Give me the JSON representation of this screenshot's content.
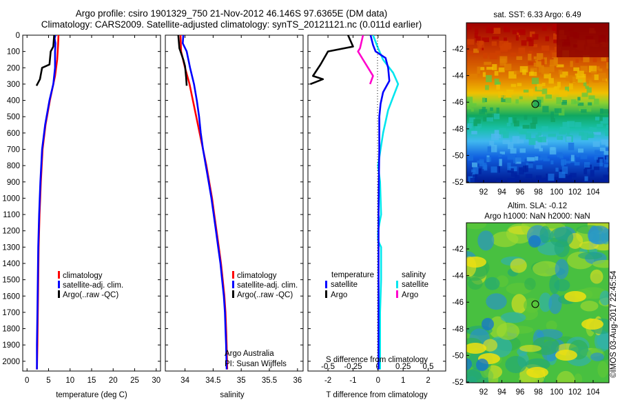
{
  "header": {
    "title_line1": "Argo profile: csiro 1901329_750 21-Nov-2012 46.146S 97.6365E (DM data)",
    "title_line2": "Climatology: CARS2009. Satellite-adjusted climatology: synTS_20121121.nc (0.011d earlier)"
  },
  "depth_ticks": [
    0,
    100,
    200,
    300,
    400,
    500,
    600,
    700,
    800,
    900,
    1000,
    1100,
    1200,
    1300,
    1400,
    1500,
    1600,
    1700,
    1800,
    1900,
    2000
  ],
  "temperature_panel": {
    "xlabel": "temperature (deg C)",
    "xlim": [
      -1,
      31
    ],
    "xticks": [
      0,
      5,
      10,
      15,
      20,
      25,
      30
    ],
    "legend": [
      "climatology",
      "satellite-adj. clim.",
      "Argo(..raw -QC)"
    ],
    "series": {
      "climatology": {
        "color": "#ff0000",
        "points": [
          [
            7.3,
            0
          ],
          [
            7.2,
            60
          ],
          [
            7.0,
            150
          ],
          [
            6.5,
            250
          ],
          [
            5.3,
            400
          ],
          [
            4.3,
            550
          ],
          [
            3.6,
            700
          ],
          [
            3.2,
            900
          ],
          [
            2.9,
            1100
          ],
          [
            2.7,
            1300
          ],
          [
            2.6,
            1500
          ],
          [
            2.5,
            1700
          ],
          [
            2.4,
            1900
          ],
          [
            2.3,
            2050
          ]
        ]
      },
      "satellite": {
        "color": "#0000ff",
        "points": [
          [
            6.6,
            0
          ],
          [
            6.4,
            20
          ],
          [
            6.6,
            50
          ],
          [
            6.5,
            100
          ],
          [
            6.5,
            200
          ],
          [
            6.1,
            300
          ],
          [
            5.2,
            400
          ],
          [
            4.2,
            550
          ],
          [
            3.5,
            700
          ],
          [
            3.1,
            900
          ],
          [
            2.8,
            1100
          ],
          [
            2.6,
            1300
          ],
          [
            2.5,
            1500
          ],
          [
            2.4,
            1700
          ],
          [
            2.3,
            1900
          ],
          [
            2.3,
            2050
          ]
        ]
      },
      "argo": {
        "color": "#000000",
        "points": [
          [
            6.3,
            0
          ],
          [
            6.1,
            70
          ],
          [
            5.5,
            100
          ],
          [
            5.2,
            180
          ],
          [
            3.5,
            200
          ],
          [
            3.0,
            270
          ],
          [
            2.2,
            310
          ]
        ]
      }
    }
  },
  "salinity_panel": {
    "xlabel": "salinity",
    "xlim": [
      33.65,
      36.1
    ],
    "xticks": [
      34,
      34.5,
      35,
      35.5,
      36
    ],
    "xtick_labels": [
      "34",
      "34.5",
      "35",
      "35.5",
      "36"
    ],
    "legend": [
      "climatology",
      "satellite-adj. clim.",
      "Argo(..raw -QC)"
    ],
    "annotation_line1": "Argo Australia",
    "annotation_line2": "PI: Susan Wijffels",
    "series": {
      "climatology": {
        "color": "#ff0000",
        "points": [
          [
            33.92,
            0
          ],
          [
            33.93,
            100
          ],
          [
            34.0,
            200
          ],
          [
            34.08,
            300
          ],
          [
            34.14,
            400
          ],
          [
            34.2,
            500
          ],
          [
            34.26,
            600
          ],
          [
            34.32,
            700
          ],
          [
            34.38,
            800
          ],
          [
            34.43,
            900
          ],
          [
            34.48,
            1000
          ],
          [
            34.52,
            1100
          ],
          [
            34.56,
            1200
          ],
          [
            34.6,
            1300
          ],
          [
            34.64,
            1400
          ],
          [
            34.67,
            1500
          ],
          [
            34.7,
            1600
          ],
          [
            34.72,
            1700
          ],
          [
            34.73,
            1800
          ],
          [
            34.74,
            1900
          ],
          [
            34.75,
            2050
          ]
        ]
      },
      "satellite": {
        "color": "#0000ff",
        "points": [
          [
            33.97,
            0
          ],
          [
            33.96,
            50
          ],
          [
            34.03,
            100
          ],
          [
            34.09,
            200
          ],
          [
            34.16,
            300
          ],
          [
            34.21,
            400
          ],
          [
            34.25,
            500
          ],
          [
            34.28,
            600
          ],
          [
            34.32,
            700
          ],
          [
            34.37,
            800
          ],
          [
            34.42,
            900
          ],
          [
            34.47,
            1000
          ],
          [
            34.51,
            1100
          ],
          [
            34.55,
            1200
          ],
          [
            34.59,
            1300
          ],
          [
            34.63,
            1400
          ],
          [
            34.66,
            1500
          ],
          [
            34.69,
            1600
          ],
          [
            34.71,
            1700
          ],
          [
            34.72,
            1800
          ],
          [
            34.73,
            1900
          ],
          [
            34.74,
            2050
          ]
        ]
      },
      "argo": {
        "color": "#000000",
        "points": [
          [
            33.88,
            0
          ],
          [
            33.9,
            80
          ],
          [
            33.97,
            150
          ],
          [
            34.0,
            190
          ],
          [
            34.02,
            260
          ],
          [
            34.03,
            310
          ]
        ]
      }
    }
  },
  "difference_panel": {
    "xlabel_bottom": "T difference from climatology",
    "xlabel_top": "S difference from climatology",
    "t_xlim": [
      -2.8,
      2.7
    ],
    "t_xticks": [
      -2,
      -1,
      0,
      1,
      2
    ],
    "s_ticks": [
      -0.5,
      -0.25,
      0,
      0.25,
      0.5
    ],
    "s_tick_labels": [
      "-0.5",
      "-0.25",
      "0",
      "0.25",
      "0.5"
    ],
    "legend": {
      "temperature_header": "temperature",
      "salinity_header": "salinity",
      "t_satellite": "satellite",
      "t_argo": "Argo",
      "s_satellite": "satellite",
      "s_argo": "Argo"
    },
    "series": {
      "t_satellite": {
        "color": "#0000ff",
        "points": [
          [
            -0.3,
            0
          ],
          [
            -0.2,
            60
          ],
          [
            -0.1,
            100
          ],
          [
            0.3,
            140
          ],
          [
            0.4,
            200
          ],
          [
            0.45,
            280
          ],
          [
            0.2,
            350
          ],
          [
            0.1,
            420
          ],
          [
            0.05,
            500
          ],
          [
            0.05,
            700
          ],
          [
            0.03,
            900
          ],
          [
            0.02,
            1100
          ],
          [
            0.02,
            1300
          ],
          [
            0.02,
            1500
          ],
          [
            0.02,
            1700
          ],
          [
            0.02,
            1900
          ],
          [
            0.02,
            2050
          ]
        ]
      },
      "t_argo": {
        "color": "#000000",
        "points": [
          [
            -1.2,
            0
          ],
          [
            -1.0,
            70
          ],
          [
            -2.0,
            100
          ],
          [
            -2.3,
            180
          ],
          [
            -2.6,
            250
          ],
          [
            -2.2,
            270
          ],
          [
            -2.7,
            300
          ]
        ]
      },
      "s_satellite": {
        "color": "#00e5ee",
        "points": [
          [
            -0.05,
            0
          ],
          [
            0.0,
            80
          ],
          [
            0.05,
            150
          ],
          [
            0.15,
            230
          ],
          [
            0.2,
            300
          ],
          [
            0.15,
            380
          ],
          [
            0.1,
            460
          ],
          [
            0.05,
            600
          ],
          [
            0.0,
            800
          ],
          [
            0.02,
            900
          ],
          [
            0.03,
            1100
          ],
          [
            0.0,
            1200
          ],
          [
            0.0,
            1260
          ],
          [
            0.03,
            1300
          ],
          [
            0.03,
            1500
          ],
          [
            0.02,
            1700
          ],
          [
            0.02,
            2050
          ]
        ]
      },
      "s_argo": {
        "color": "#ff00cc",
        "points": [
          [
            -0.15,
            0
          ],
          [
            -0.18,
            80
          ],
          [
            -0.2,
            100
          ],
          [
            -0.15,
            150
          ],
          [
            -0.1,
            200
          ],
          [
            -0.05,
            250
          ],
          [
            -0.08,
            300
          ]
        ]
      }
    }
  },
  "sst_map": {
    "title": "sat. SST: 6.33 Argo: 6.49",
    "yticks": [
      "-42",
      "-44",
      "-46",
      "-48",
      "-50",
      "-52"
    ],
    "xticks": [
      "92",
      "94",
      "96",
      "98",
      "100",
      "102",
      "104"
    ]
  },
  "sla_map": {
    "title_line1": "Altim. SLA: -0.12",
    "title_line2": "Argo h1000: NaN h2000: NaN",
    "yticks": [
      "-42",
      "-44",
      "-46",
      "-48",
      "-50",
      "-52"
    ],
    "xticks": [
      "92",
      "94",
      "96",
      "98",
      "100",
      "102",
      "104"
    ]
  },
  "footer": {
    "credit": "©IMOS 03-Aug-2017 22:45:54"
  }
}
